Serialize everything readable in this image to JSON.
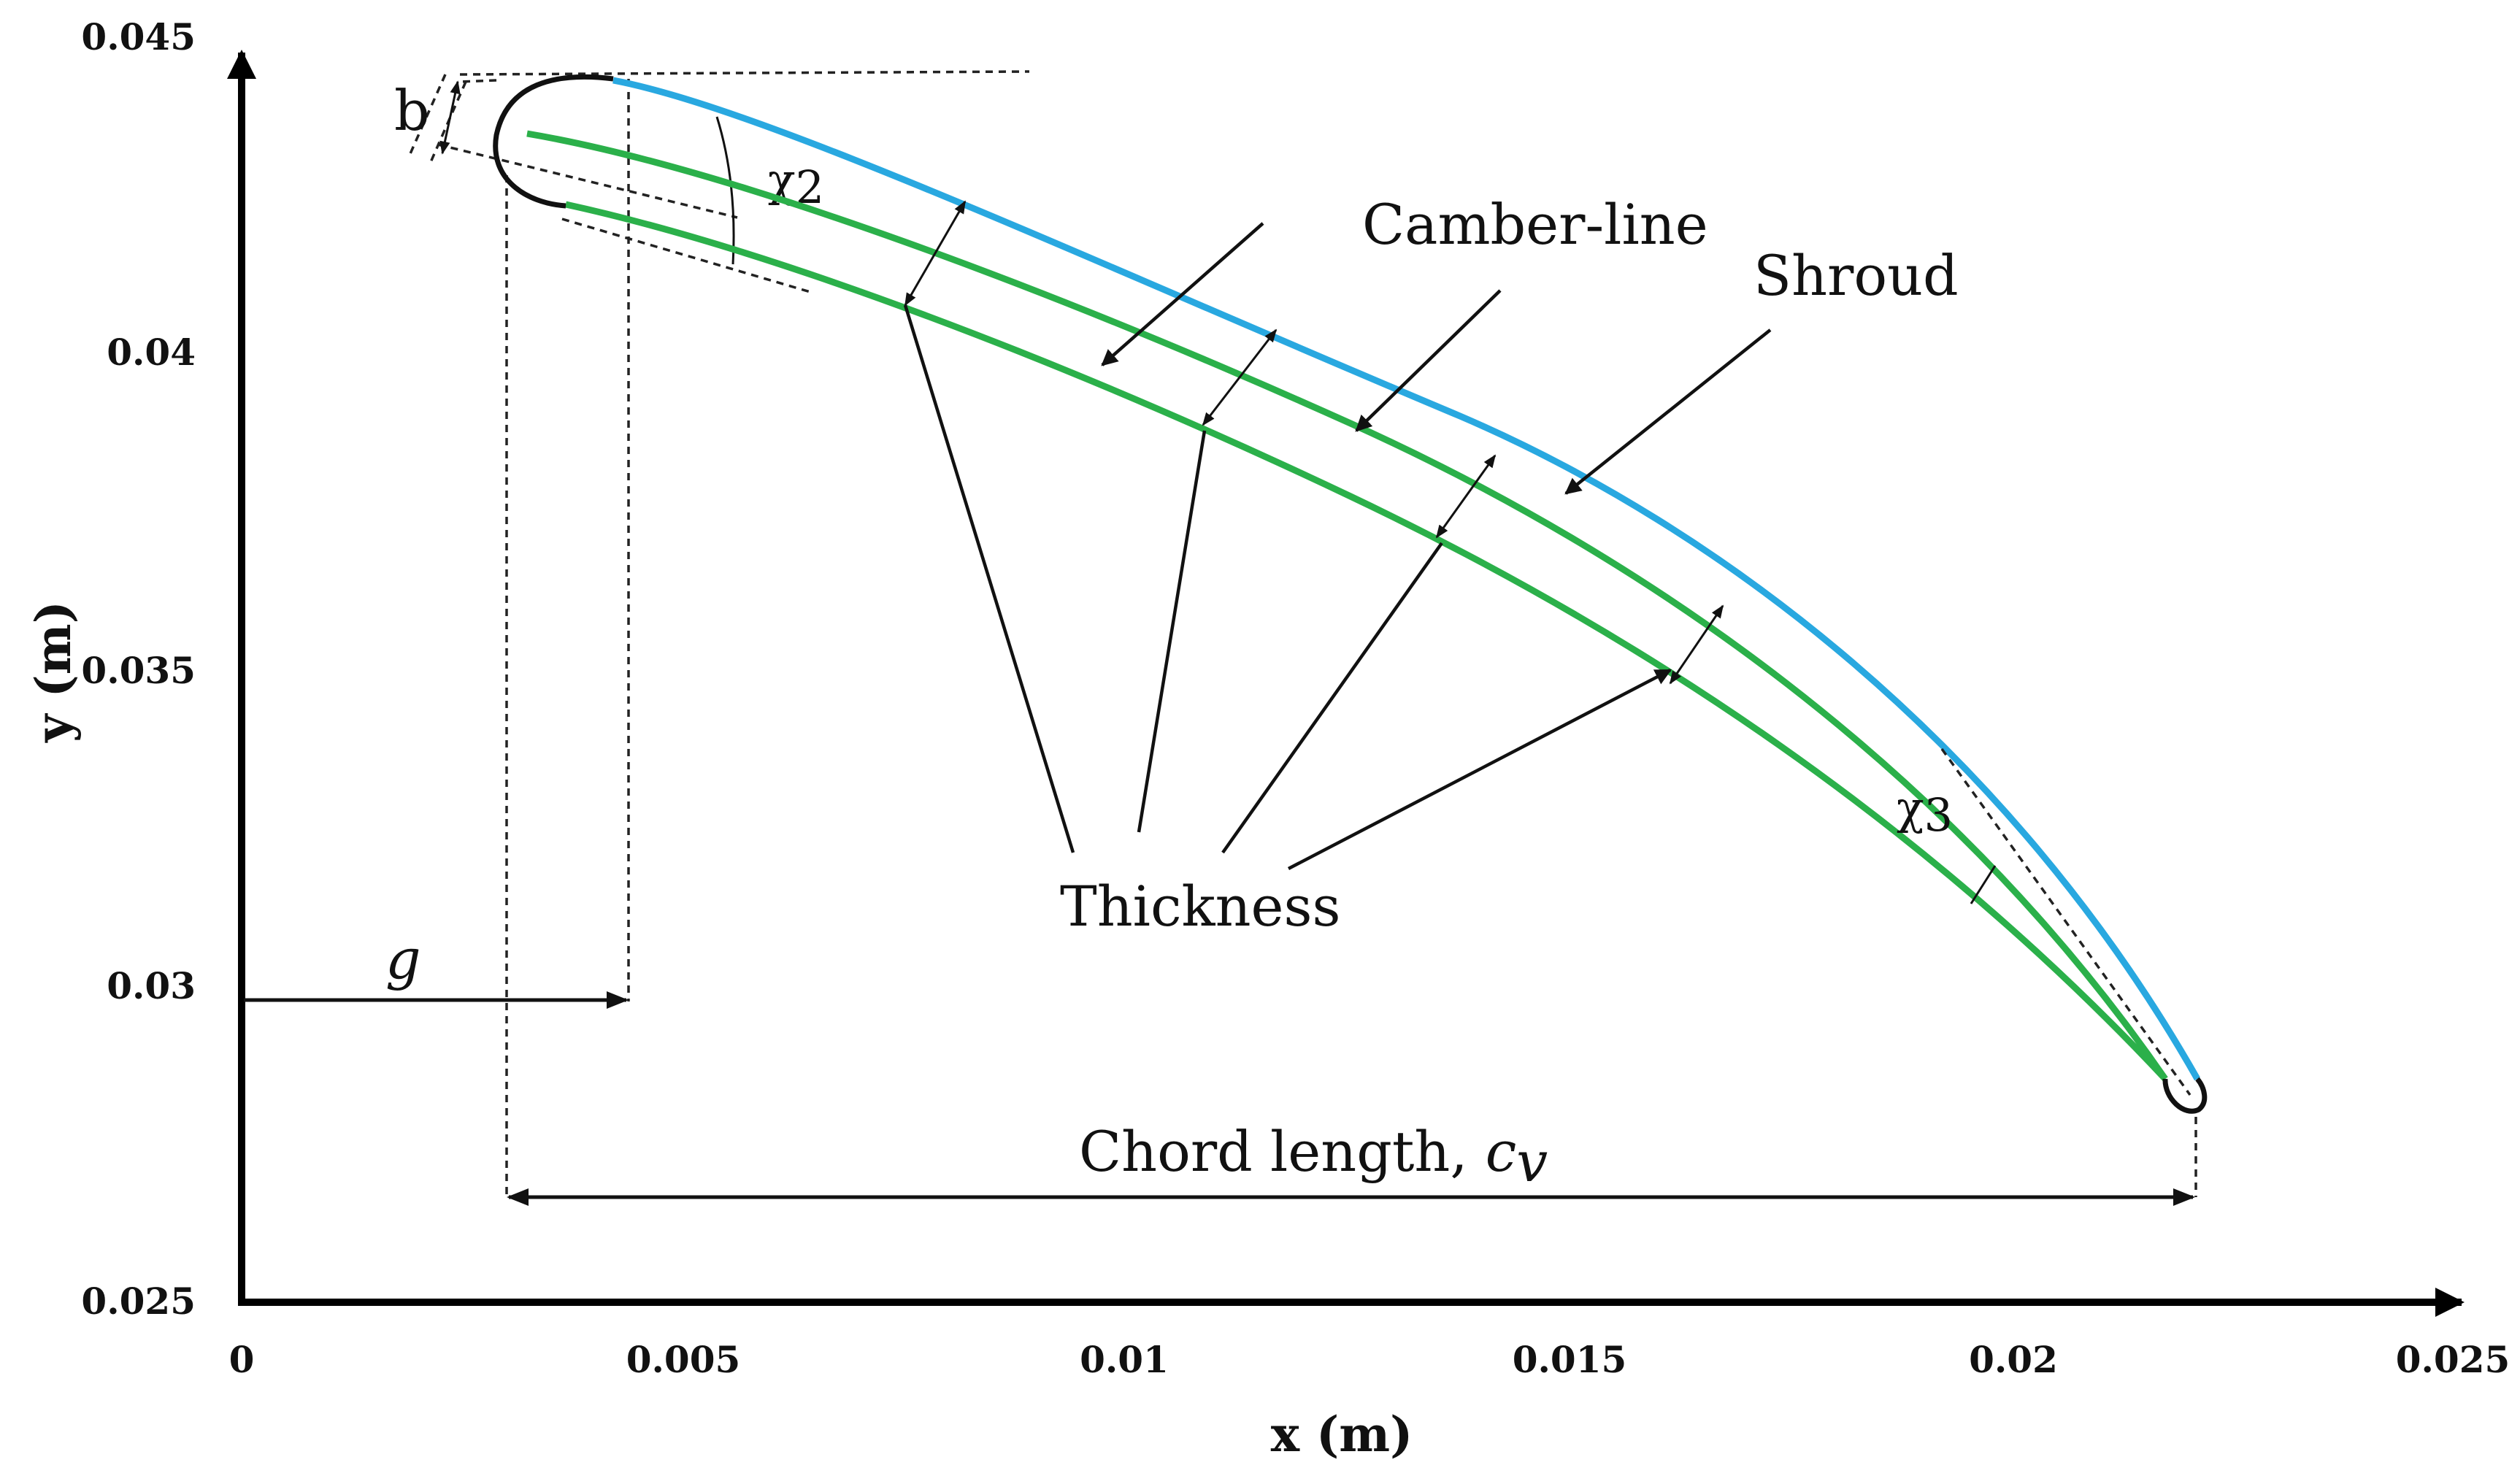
{
  "chart_data": {
    "type": "diagram",
    "xlabel": "x (m)",
    "ylabel": "y (m)",
    "xlim": [
      0,
      0.025
    ],
    "ylim": [
      0.025,
      0.045
    ],
    "x_ticks": [
      "0",
      "0.005",
      "0.01",
      "0.015",
      "0.02",
      "0.025"
    ],
    "y_ticks": [
      "0.025",
      "0.03",
      "0.035",
      "0.04",
      "0.045"
    ],
    "colors": {
      "shroud": "#29a8e0",
      "camber": "#2bb04a",
      "outline": "#111111"
    },
    "annotations": {
      "camber_line": "Camber-line",
      "shroud": "Shroud",
      "thickness": "Thickness",
      "chord_length": "Chord length, ",
      "chord_symbol": "c",
      "chord_subscript": "v",
      "g": "g",
      "b": "b",
      "chi2": "χ",
      "chi2_sub": "2",
      "chi3": "χ",
      "chi3_sub": "3"
    },
    "curves": {
      "shroud": [
        [
          0.0043,
          0.0444
        ],
        [
          0.008,
          0.0425
        ],
        [
          0.012,
          0.0405
        ],
        [
          0.015,
          0.0384
        ],
        [
          0.0168,
          0.0362
        ],
        [
          0.019,
          0.0338
        ],
        [
          0.0203,
          0.0318
        ],
        [
          0.0213,
          0.0298
        ],
        [
          0.0223,
          0.0284
        ]
      ],
      "camber": [
        [
          0.0033,
          0.0435
        ],
        [
          0.0067,
          0.0423
        ],
        [
          0.01,
          0.0405
        ],
        [
          0.013,
          0.0386
        ],
        [
          0.0155,
          0.0365
        ],
        [
          0.0175,
          0.0345
        ],
        [
          0.019,
          0.0328
        ],
        [
          0.0201,
          0.031
        ],
        [
          0.0212,
          0.0295
        ],
        [
          0.0218,
          0.0287
        ]
      ],
      "suction": [
        [
          0.0037,
          0.0424
        ],
        [
          0.0073,
          0.0409
        ],
        [
          0.0105,
          0.0391
        ],
        [
          0.013,
          0.0372
        ],
        [
          0.0155,
          0.035
        ],
        [
          0.0175,
          0.033
        ],
        [
          0.0193,
          0.0312
        ],
        [
          0.0206,
          0.0297
        ],
        [
          0.0216,
          0.0285
        ]
      ]
    }
  }
}
